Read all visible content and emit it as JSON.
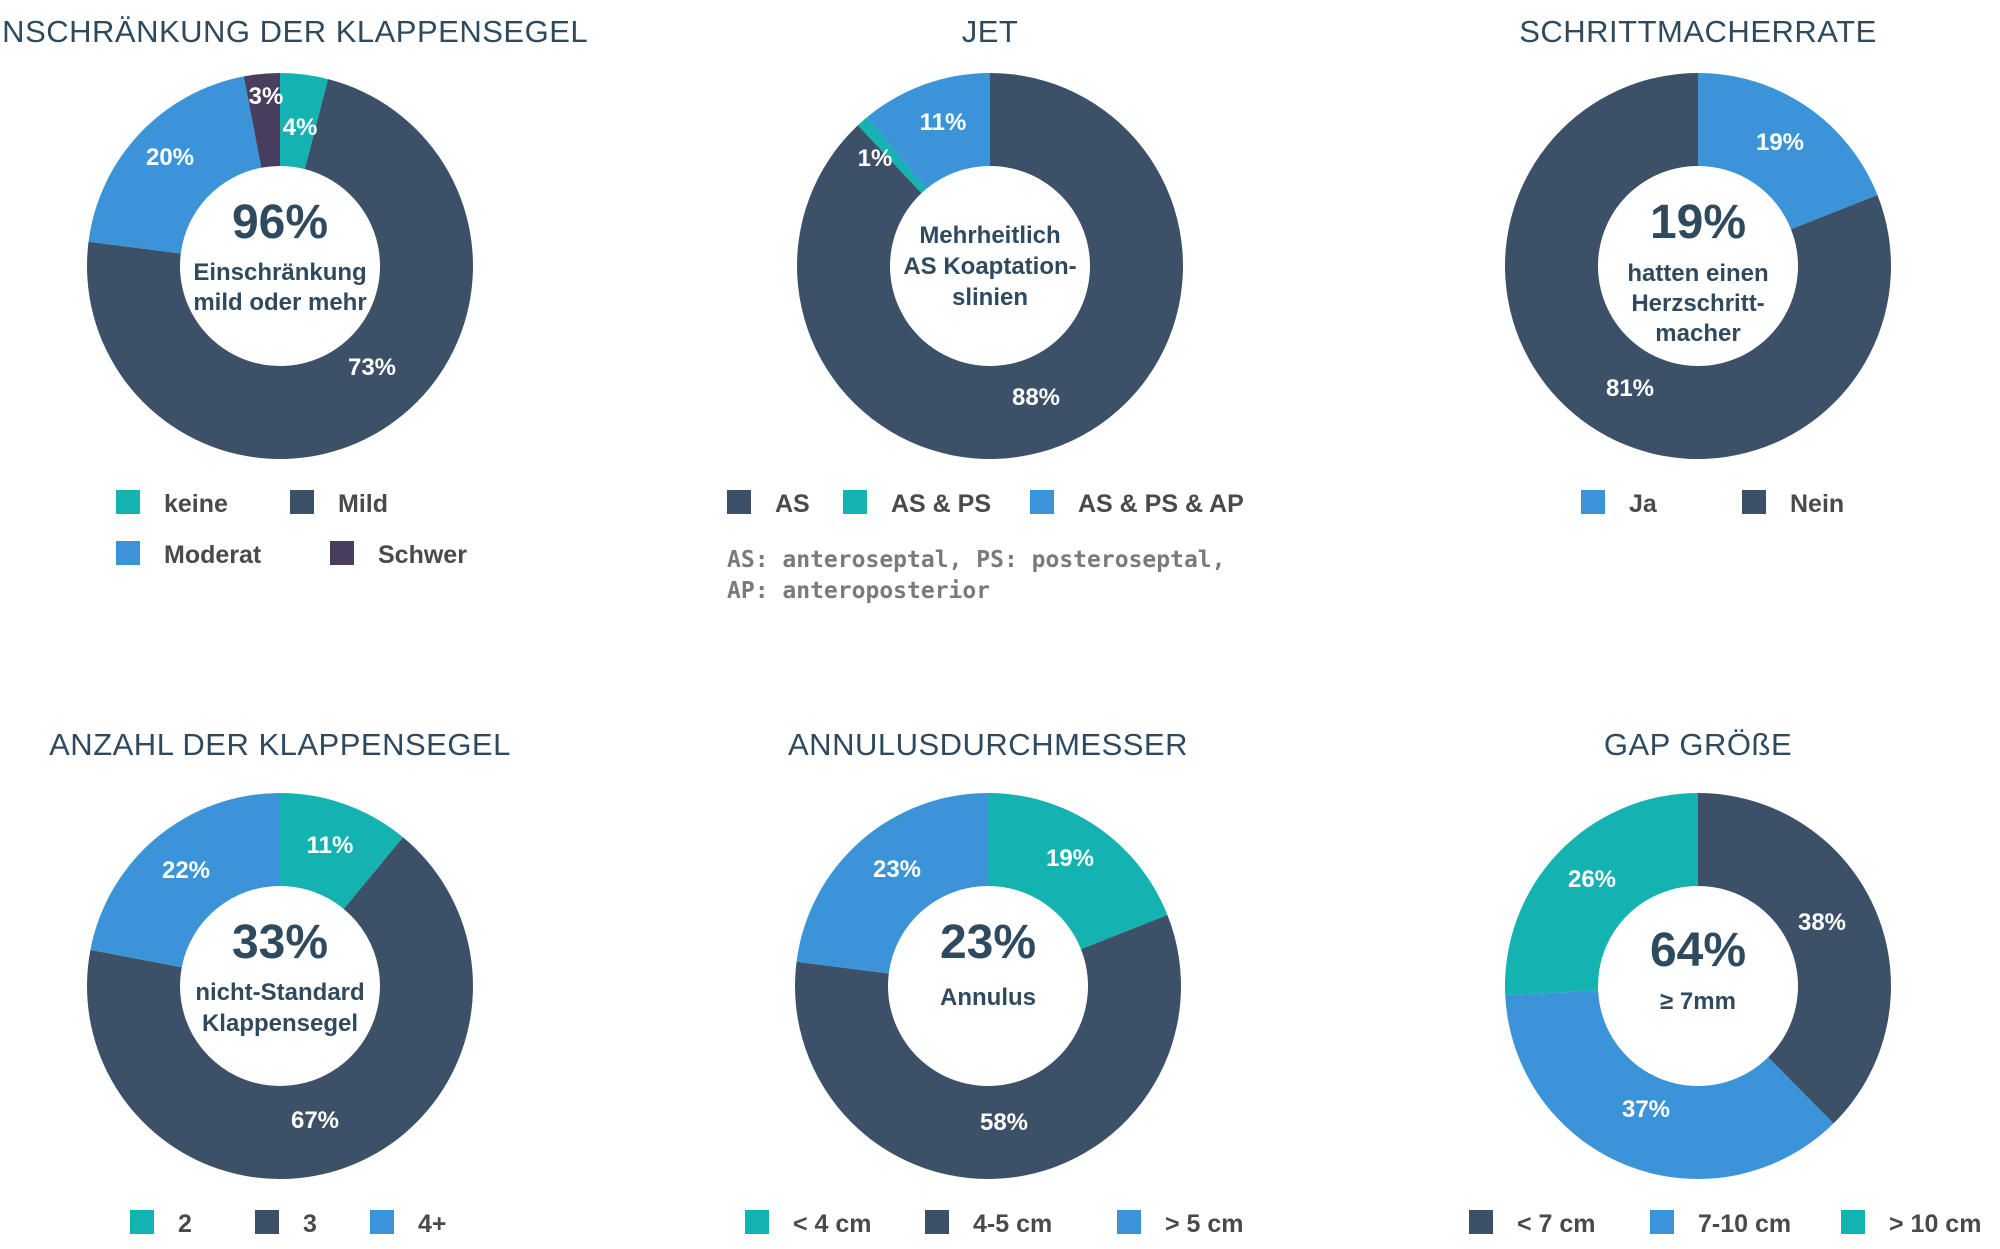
{
  "colors": {
    "dark": "#3c5168",
    "teal": "#14b2b0",
    "blue": "#3b94d8",
    "purple": "#4a3e5f",
    "title": "#2f4a5f"
  },
  "chart_data": [
    {
      "type": "pie",
      "title": "EINSCHRÄNKUNG DER KLAPPENSEGEL",
      "center_value": "96%",
      "center_lines": [
        "Einschränkung",
        "mild oder mehr"
      ],
      "slices": [
        {
          "name": "keine",
          "value": 4,
          "label": "4%",
          "color": "teal"
        },
        {
          "name": "Mild",
          "value": 73,
          "label": "73%",
          "color": "dark"
        },
        {
          "name": "Moderat",
          "value": 20,
          "label": "20%",
          "color": "blue"
        },
        {
          "name": "Schwer",
          "value": 3,
          "label": "3%",
          "color": "purple"
        }
      ],
      "legend": [
        {
          "label": "keine",
          "color": "teal"
        },
        {
          "label": "Mild",
          "color": "dark"
        },
        {
          "label": "Moderat",
          "color": "blue"
        },
        {
          "label": "Schwer",
          "color": "purple"
        }
      ],
      "legend_layout": "grid-2x2"
    },
    {
      "type": "pie",
      "title": "JET",
      "center_value": "",
      "center_lines": [
        "Mehrheitlich",
        "AS Koaptation-",
        "slinien"
      ],
      "slices": [
        {
          "name": "AS",
          "value": 88,
          "label": "88%",
          "color": "dark"
        },
        {
          "name": "AS & PS",
          "value": 1,
          "label": "1%",
          "color": "teal"
        },
        {
          "name": "AS & PS & AP",
          "value": 11,
          "label": "11%",
          "color": "blue"
        }
      ],
      "legend": [
        {
          "label": "AS",
          "color": "dark"
        },
        {
          "label": "AS & PS",
          "color": "teal"
        },
        {
          "label": "AS & PS & AP",
          "color": "blue"
        }
      ],
      "note": [
        "AS: anteroseptal, PS: posteroseptal,",
        "AP: anteroposterior"
      ]
    },
    {
      "type": "pie",
      "title": "SCHRITTMACHERRATE",
      "center_value": "19%",
      "center_lines": [
        "hatten einen",
        "Herzschritt-",
        "macher"
      ],
      "slices": [
        {
          "name": "Ja",
          "value": 19,
          "label": "19%",
          "color": "blue"
        },
        {
          "name": "Nein",
          "value": 81,
          "label": "81%",
          "color": "dark"
        }
      ],
      "legend": [
        {
          "label": "Ja",
          "color": "blue"
        },
        {
          "label": "Nein",
          "color": "dark"
        }
      ]
    },
    {
      "type": "pie",
      "title": "ANZAHL DER KLAPPENSEGEL",
      "center_value": "33%",
      "center_lines": [
        "nicht-Standard",
        "Klappensegel"
      ],
      "slices": [
        {
          "name": "2",
          "value": 11,
          "label": "11%",
          "color": "teal"
        },
        {
          "name": "3",
          "value": 67,
          "label": "67%",
          "color": "dark"
        },
        {
          "name": "4+",
          "value": 22,
          "label": "22%",
          "color": "blue"
        }
      ],
      "legend": [
        {
          "label": "2",
          "color": "teal"
        },
        {
          "label": "3",
          "color": "dark"
        },
        {
          "label": "4+",
          "color": "blue"
        }
      ]
    },
    {
      "type": "pie",
      "title": "ANNULUSDURCHMESSER",
      "center_value": "23%",
      "center_lines": [
        "Annulus"
      ],
      "slices": [
        {
          "name": "< 4 cm",
          "value": 19,
          "label": "19%",
          "color": "teal"
        },
        {
          "name": "4-5 cm",
          "value": 58,
          "label": "58%",
          "color": "dark"
        },
        {
          "name": "> 5 cm",
          "value": 23,
          "label": "23%",
          "color": "blue"
        }
      ],
      "legend": [
        {
          "label": "< 4 cm",
          "color": "teal"
        },
        {
          "label": "4-5 cm",
          "color": "dark"
        },
        {
          "label": "> 5 cm",
          "color": "blue"
        }
      ]
    },
    {
      "type": "pie",
      "title": "GAP GRÖßE",
      "center_value": "64%",
      "center_lines": [
        "≥ 7mm"
      ],
      "slices": [
        {
          "name": "< 7 cm",
          "value": 38,
          "label": "38%",
          "color": "dark"
        },
        {
          "name": "7-10 cm",
          "value": 37,
          "label": "37%",
          "color": "blue"
        },
        {
          "name": "> 10 cm",
          "value": 26,
          "label": "26%",
          "color": "teal"
        }
      ],
      "legend": [
        {
          "label": "< 7 cm",
          "color": "dark"
        },
        {
          "label": "7-10 cm",
          "color": "blue"
        },
        {
          "label": "> 10 cm",
          "color": "teal"
        }
      ]
    }
  ]
}
